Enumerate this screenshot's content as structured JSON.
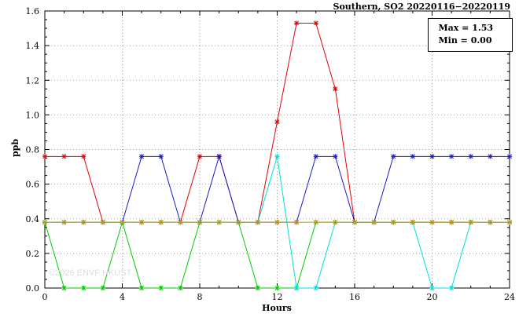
{
  "title": "Southern, SO2 20220116−20220119",
  "legend": {
    "max_label": "Max = 1.53",
    "min_label": "Min = 0.00"
  },
  "watermark": "©2026 ENVF HKUST",
  "chart_data": {
    "type": "line",
    "title": "Southern, SO2 20220116−20220119",
    "xlabel": "Hours",
    "ylabel": "ppb",
    "xlim": [
      0,
      24
    ],
    "ylim": [
      0,
      1.6
    ],
    "xticks": [
      0,
      4,
      8,
      12,
      16,
      20,
      24
    ],
    "yticks": [
      0,
      0.2,
      0.4,
      0.6,
      0.8,
      1.0,
      1.2,
      1.4,
      1.6
    ],
    "grid": true,
    "legend_position": "top-right",
    "annotations": [
      "Max = 1.53",
      "Min = 0.00"
    ],
    "marker": "asterisk",
    "x": [
      0,
      1,
      2,
      3,
      4,
      5,
      6,
      7,
      8,
      9,
      10,
      11,
      12,
      13,
      14,
      15,
      16,
      17,
      18,
      19,
      20,
      21,
      22,
      23,
      24
    ],
    "series": [
      {
        "name": "series-red",
        "color": "#e60000",
        "values": [
          0.76,
          0.76,
          0.76,
          0.38,
          0.38,
          0.38,
          0.38,
          0.38,
          0.76,
          0.76,
          0.38,
          0.38,
          0.96,
          1.53,
          1.53,
          1.15,
          0.38,
          0.38,
          0.38,
          0.38,
          0.38,
          0.38,
          0.38,
          0.38,
          0.38
        ]
      },
      {
        "name": "series-blue",
        "color": "#1a1acc",
        "values": [
          0.38,
          0.38,
          0.38,
          0.38,
          0.38,
          0.76,
          0.76,
          0.38,
          0.38,
          0.76,
          0.38,
          0.38,
          0.38,
          0.38,
          0.76,
          0.76,
          0.38,
          0.38,
          0.76,
          0.76,
          0.76,
          0.76,
          0.76,
          0.76,
          0.76
        ]
      },
      {
        "name": "series-green",
        "color": "#00cc00",
        "values": [
          0.38,
          0.0,
          0.0,
          0.0,
          0.38,
          0.0,
          0.0,
          0.0,
          0.38,
          0.38,
          0.38,
          0.0,
          0.0,
          0.0,
          0.38,
          0.38,
          0.38,
          0.38,
          0.38,
          0.38,
          0.38,
          0.38,
          0.38,
          0.38,
          0.38
        ]
      },
      {
        "name": "series-cyan",
        "color": "#00dede",
        "values": [
          0.38,
          0.38,
          0.38,
          0.38,
          0.38,
          0.38,
          0.38,
          0.38,
          0.38,
          0.38,
          0.38,
          0.38,
          0.76,
          0.0,
          0.0,
          0.38,
          0.38,
          0.38,
          0.38,
          0.38,
          0.0,
          0.0,
          0.38,
          0.38,
          0.38
        ]
      },
      {
        "name": "series-orange",
        "color": "#c8960a",
        "values": [
          0.38,
          0.38,
          0.38,
          0.38,
          0.38,
          0.38,
          0.38,
          0.38,
          0.38,
          0.38,
          0.38,
          0.38,
          0.38,
          0.38,
          0.38,
          0.38,
          0.38,
          0.38,
          0.38,
          0.38,
          0.38,
          0.38,
          0.38,
          0.38,
          0.38
        ]
      }
    ]
  }
}
